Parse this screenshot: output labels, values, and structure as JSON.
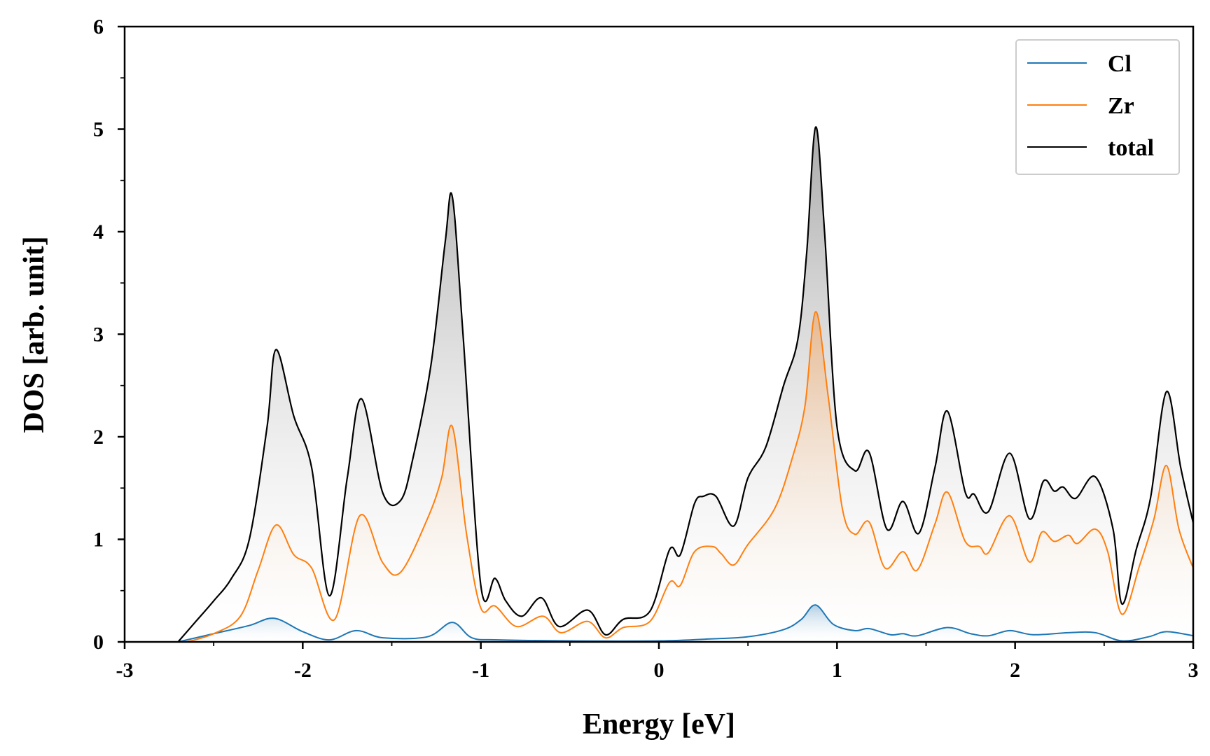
{
  "chart_data": {
    "type": "line",
    "title": "",
    "xlabel": "Energy [eV]",
    "ylabel": "DOS [arb. unit]",
    "xlim": [
      -3,
      3
    ],
    "ylim": [
      0,
      6
    ],
    "xticks": [
      -3,
      -2,
      -1,
      0,
      1,
      2,
      3
    ],
    "xtick_labels": [
      "-3",
      "-2",
      "-1",
      "0",
      "1",
      "2",
      "3"
    ],
    "yticks": [
      0,
      1,
      2,
      3,
      4,
      5,
      6
    ],
    "ytick_labels": [
      "0",
      "1",
      "2",
      "3",
      "4",
      "5",
      "6"
    ],
    "grid": false,
    "legend": {
      "position": "top-right",
      "entries": [
        "Cl",
        "Zr",
        "total"
      ]
    },
    "fill_under_curves": true,
    "series": [
      {
        "name": "Cl",
        "color": "#1f77b4",
        "x": [
          -2.7,
          -2.5,
          -2.3,
          -2.16,
          -2.0,
          -1.85,
          -1.7,
          -1.55,
          -1.3,
          -1.16,
          -1.05,
          -0.9,
          -0.5,
          0.0,
          0.3,
          0.5,
          0.7,
          0.8,
          0.88,
          0.98,
          1.1,
          1.18,
          1.3,
          1.37,
          1.45,
          1.62,
          1.75,
          1.85,
          1.97,
          2.1,
          2.3,
          2.45,
          2.6,
          2.75,
          2.85,
          3.0
        ],
        "values": [
          0.0,
          0.08,
          0.16,
          0.23,
          0.1,
          0.02,
          0.11,
          0.04,
          0.05,
          0.19,
          0.04,
          0.02,
          0.01,
          0.01,
          0.03,
          0.05,
          0.12,
          0.22,
          0.36,
          0.17,
          0.11,
          0.13,
          0.07,
          0.08,
          0.06,
          0.14,
          0.08,
          0.06,
          0.11,
          0.07,
          0.09,
          0.09,
          0.01,
          0.05,
          0.1,
          0.06
        ]
      },
      {
        "name": "Zr",
        "color": "#ff7f0e",
        "x": [
          -2.65,
          -2.5,
          -2.35,
          -2.25,
          -2.15,
          -2.05,
          -1.95,
          -1.82,
          -1.68,
          -1.55,
          -1.45,
          -1.3,
          -1.22,
          -1.16,
          -1.08,
          -1.0,
          -0.92,
          -0.8,
          -0.65,
          -0.55,
          -0.4,
          -0.3,
          -0.2,
          -0.05,
          0.06,
          0.12,
          0.2,
          0.3,
          0.35,
          0.42,
          0.5,
          0.65,
          0.75,
          0.82,
          0.88,
          0.95,
          1.03,
          1.1,
          1.18,
          1.27,
          1.37,
          1.45,
          1.55,
          1.62,
          1.72,
          1.8,
          1.85,
          1.97,
          2.08,
          2.15,
          2.22,
          2.3,
          2.35,
          2.45,
          2.52,
          2.6,
          2.7,
          2.78,
          2.85,
          2.92,
          3.0
        ],
        "values": [
          0.0,
          0.08,
          0.25,
          0.7,
          1.14,
          0.85,
          0.72,
          0.22,
          1.23,
          0.77,
          0.68,
          1.2,
          1.6,
          2.1,
          1.05,
          0.33,
          0.35,
          0.15,
          0.25,
          0.09,
          0.2,
          0.04,
          0.14,
          0.2,
          0.58,
          0.55,
          0.88,
          0.93,
          0.86,
          0.75,
          0.95,
          1.3,
          1.8,
          2.3,
          3.22,
          2.4,
          1.3,
          1.05,
          1.17,
          0.72,
          0.88,
          0.7,
          1.15,
          1.46,
          0.98,
          0.93,
          0.87,
          1.23,
          0.78,
          1.07,
          0.98,
          1.04,
          0.96,
          1.1,
          0.88,
          0.27,
          0.75,
          1.2,
          1.72,
          1.1,
          0.72
        ]
      },
      {
        "name": "total",
        "color": "#000000",
        "x": [
          -2.7,
          -2.6,
          -2.5,
          -2.4,
          -2.3,
          -2.2,
          -2.15,
          -2.05,
          -1.95,
          -1.85,
          -1.75,
          -1.67,
          -1.55,
          -1.45,
          -1.38,
          -1.28,
          -1.2,
          -1.16,
          -1.1,
          -1.0,
          -0.92,
          -0.86,
          -0.77,
          -0.66,
          -0.56,
          -0.4,
          -0.3,
          -0.2,
          -0.05,
          0.06,
          0.12,
          0.2,
          0.25,
          0.32,
          0.42,
          0.5,
          0.6,
          0.7,
          0.78,
          0.83,
          0.88,
          0.93,
          1.0,
          1.1,
          1.18,
          1.28,
          1.37,
          1.46,
          1.55,
          1.62,
          1.72,
          1.77,
          1.85,
          1.97,
          2.08,
          2.16,
          2.22,
          2.27,
          2.34,
          2.45,
          2.55,
          2.6,
          2.68,
          2.76,
          2.85,
          2.93,
          3.0
        ],
        "values": [
          0.0,
          0.2,
          0.4,
          0.62,
          1.0,
          2.1,
          2.85,
          2.2,
          1.7,
          0.45,
          1.6,
          2.37,
          1.45,
          1.38,
          1.8,
          2.7,
          3.9,
          4.34,
          3.0,
          0.55,
          0.62,
          0.4,
          0.25,
          0.43,
          0.15,
          0.31,
          0.07,
          0.22,
          0.3,
          0.9,
          0.85,
          1.35,
          1.42,
          1.42,
          1.13,
          1.6,
          1.9,
          2.5,
          2.95,
          3.8,
          5.02,
          4.0,
          2.1,
          1.67,
          1.85,
          1.1,
          1.37,
          1.06,
          1.7,
          2.25,
          1.46,
          1.44,
          1.27,
          1.84,
          1.2,
          1.57,
          1.47,
          1.51,
          1.4,
          1.61,
          1.1,
          0.37,
          0.9,
          1.4,
          2.44,
          1.7,
          1.16
        ]
      }
    ]
  }
}
